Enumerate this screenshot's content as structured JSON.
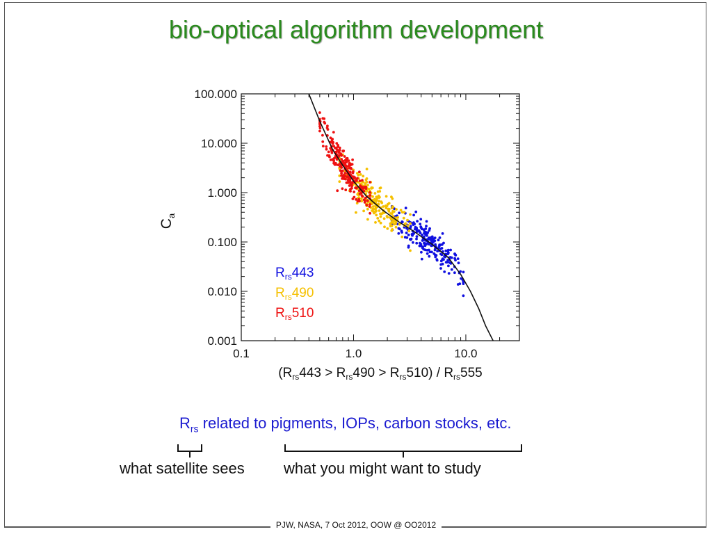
{
  "slide": {
    "title": "bio-optical algorithm development",
    "caption": {
      "prefix": "R",
      "subscript": "rs",
      "text": " related to pigments, IOPs, carbon stocks, etc."
    },
    "brace_left_label": "what satellite sees",
    "brace_right_label": "what you might want to study",
    "footer": "PJW, NASA, 7 Oct 2012, OOW @ OO2012"
  },
  "colors": {
    "title": "#2a8a1e",
    "caption": "#1a1ad0",
    "series_443": "#1010e0",
    "series_490": "#f5c000",
    "series_510": "#ee1111"
  },
  "chart_data": {
    "type": "scatter",
    "x_scale": "log",
    "y_scale": "log",
    "xlim": [
      0.1,
      30
    ],
    "ylim": [
      0.001,
      100
    ],
    "x_ticks": [
      {
        "value": 0.1,
        "label": "0.1"
      },
      {
        "value": 1.0,
        "label": "1.0"
      },
      {
        "value": 10.0,
        "label": "10.0"
      }
    ],
    "y_ticks": [
      {
        "value": 100,
        "label": "100.000"
      },
      {
        "value": 10,
        "label": "10.000"
      },
      {
        "value": 1,
        "label": "1.000"
      },
      {
        "value": 0.1,
        "label": "0.100"
      },
      {
        "value": 0.01,
        "label": "0.010"
      },
      {
        "value": 0.001,
        "label": "0.001"
      }
    ],
    "ylabel": {
      "main": "C",
      "sub": "a"
    },
    "xlabel_parts": [
      {
        "t": "(R"
      },
      {
        "t": "rs",
        "sub": true
      },
      {
        "t": "443 > R"
      },
      {
        "t": "rs",
        "sub": true
      },
      {
        "t": "490 > R"
      },
      {
        "t": "rs",
        "sub": true
      },
      {
        "t": "510) / R"
      },
      {
        "t": "rs",
        "sub": true
      },
      {
        "t": "555"
      }
    ],
    "legend": {
      "placement": "bottom-left",
      "entries": [
        {
          "main": "R",
          "sub": "rs",
          "suffix": "443",
          "color": "#1010e0"
        },
        {
          "main": "R",
          "sub": "rs",
          "suffix": "490",
          "color": "#f5c000"
        },
        {
          "main": "R",
          "sub": "rs",
          "suffix": "510",
          "color": "#ee1111"
        }
      ]
    },
    "grid": false,
    "series": [
      {
        "name": "Rrs443",
        "color": "#1010e0",
        "x_range": [
          2.2,
          9.5
        ],
        "count": 230
      },
      {
        "name": "Rrs490",
        "color": "#f5c000",
        "x_range": [
          0.75,
          3.2
        ],
        "count": 230
      },
      {
        "name": "Rrs510",
        "color": "#ee1111",
        "x_range": [
          0.5,
          1.4
        ],
        "count": 250
      }
    ],
    "fit_curve": {
      "points": [
        [
          0.4,
          100
        ],
        [
          0.5,
          28
        ],
        [
          0.65,
          7.5
        ],
        [
          0.8,
          3.6
        ],
        [
          1.0,
          1.7
        ],
        [
          1.3,
          0.85
        ],
        [
          1.8,
          0.45
        ],
        [
          2.5,
          0.26
        ],
        [
          3.5,
          0.16
        ],
        [
          5.0,
          0.09
        ],
        [
          7.0,
          0.048
        ],
        [
          9.0,
          0.022
        ],
        [
          11.0,
          0.01
        ],
        [
          13.0,
          0.0045
        ],
        [
          15.0,
          0.002
        ],
        [
          17.5,
          0.001
        ]
      ]
    }
  }
}
